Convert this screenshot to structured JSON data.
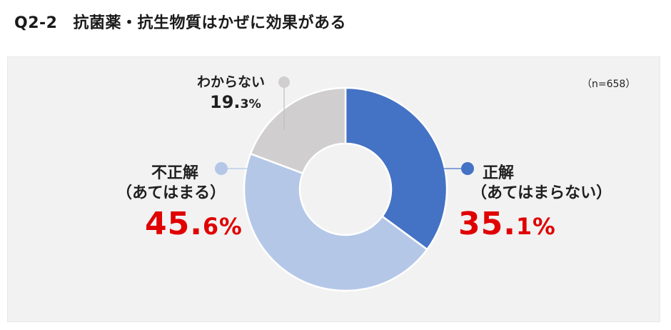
{
  "title": {
    "question_number": "Q2-2",
    "text": "抗菌薬・抗生物質はかぜに効果がある"
  },
  "sample_size": "（n=658）",
  "labels": {
    "dont_know": {
      "name": "わからない",
      "pct_int": "19.",
      "pct_dec": "3",
      "pct_sign": "%"
    },
    "incorrect": {
      "name": "不正解",
      "sub": "（あてはまる）",
      "pct_int": "45.",
      "pct_dec": "6",
      "pct_sign": "%"
    },
    "correct": {
      "name": "正解",
      "sub": "（あてはまらない）",
      "pct_int": "35.",
      "pct_dec": "1",
      "pct_sign": "%"
    }
  },
  "colors": {
    "correct": "#4472c4",
    "incorrect": "#b4c7e7",
    "dont_know": "#d0cece",
    "highlight_pct": "#e00000",
    "panel_bg": "#f2f2f2"
  },
  "chart_data": {
    "type": "pie",
    "subtype": "donut",
    "title": "Q2-2 抗菌薬・抗生物質はかぜに効果がある",
    "note": "n=658",
    "categories": [
      "正解（あてはまらない）",
      "不正解（あてはまる）",
      "わからない"
    ],
    "values": [
      35.1,
      45.6,
      19.3
    ],
    "colors": [
      "#4472c4",
      "#b4c7e7",
      "#d0cece"
    ],
    "start_angle_deg": 0,
    "direction": "clockwise",
    "legend": "none (callout labels)"
  }
}
